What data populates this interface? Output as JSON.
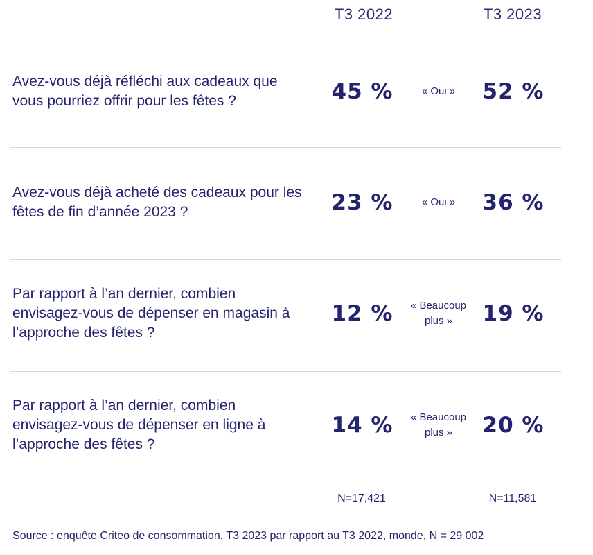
{
  "chart_data": {
    "type": "table",
    "columns": [
      "T3 2022",
      "T3 2023"
    ],
    "rows": [
      {
        "question": "Avez-vous déjà réfléchi aux cadeaux que vous pourriez offrir pour les fêtes ?",
        "answer": "« Oui »",
        "values": [
          "45 %",
          "52 %"
        ]
      },
      {
        "question": "Avez-vous déjà acheté des cadeaux pour les fêtes de fin d’année 2023 ?",
        "answer": "« Oui »",
        "values": [
          "23 %",
          "36 %"
        ]
      },
      {
        "question": "Par rapport à l’an dernier, combien envisagez-vous de dépenser en magasin à l’approche des fêtes ?",
        "answer": "« Beaucoup plus »",
        "values": [
          "12 %",
          "19 %"
        ]
      },
      {
        "question": "Par rapport à l’an dernier, combien envisagez-vous de dépenser en ligne à l’approche des fêtes ?",
        "answer": "« Beaucoup plus »",
        "values": [
          "14 %",
          "20 %"
        ]
      }
    ],
    "sample_sizes": [
      "N=17,421",
      "N=11,581"
    ],
    "source": "Source : enquête Criteo de consommation, T3 2023 par rapport au T3 2022, monde, N = 29 002"
  },
  "colors": {
    "text": "#24246e",
    "rule": "#bfe3d7"
  }
}
